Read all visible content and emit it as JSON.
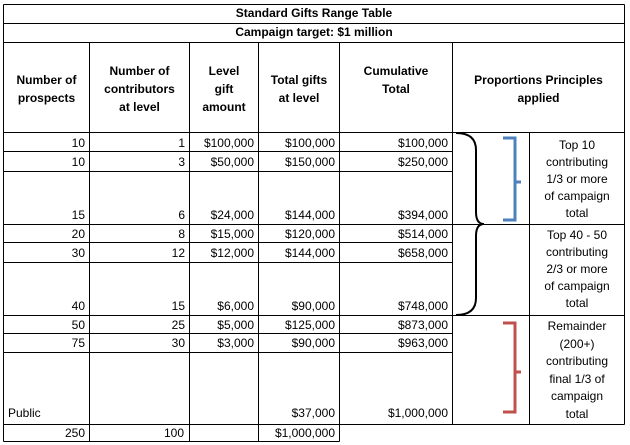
{
  "title": "Standard Gifts Range Table",
  "subtitle": "Campaign target:  $1 million",
  "headers": {
    "prospects": [
      "Number of",
      "prospects"
    ],
    "contributors": [
      "Number of",
      "contributors",
      "at level"
    ],
    "level_gift": [
      "Level",
      "gift",
      "amount"
    ],
    "total_gifts": [
      "Total gifts",
      "at level"
    ],
    "cumulative": [
      "Cumulative",
      "Total"
    ],
    "principles": [
      "Proportions Principles",
      "applied"
    ]
  },
  "rows": [
    {
      "prospects": "10",
      "contributors": "1",
      "level": "$100,000",
      "total": "$100,000",
      "cumulative": "$100,000"
    },
    {
      "prospects": "10",
      "contributors": "3",
      "level": "$50,000",
      "total": "$150,000",
      "cumulative": "$250,000"
    },
    {
      "prospects": "15",
      "contributors": "6",
      "level": "$24,000",
      "total": "$144,000",
      "cumulative": "$394,000"
    },
    {
      "prospects": "20",
      "contributors": "8",
      "level": "$15,000",
      "total": "$120,000",
      "cumulative": "$514,000"
    },
    {
      "prospects": "30",
      "contributors": "12",
      "level": "$12,000",
      "total": "$144,000",
      "cumulative": "$658,000"
    },
    {
      "prospects": "40",
      "contributors": "15",
      "level": "$6,000",
      "total": "$90,000",
      "cumulative": "$748,000"
    },
    {
      "prospects": "50",
      "contributors": "25",
      "level": "$5,000",
      "total": "$125,000",
      "cumulative": "$873,000"
    },
    {
      "prospects": "75",
      "contributors": "30",
      "level": "$3,000",
      "total": "$90,000",
      "cumulative": "$963,000"
    },
    {
      "prospects": "Public",
      "contributors": "",
      "level": "",
      "total": "$37,000",
      "cumulative": "$1,000,000"
    }
  ],
  "totals": {
    "prospects": "250",
    "contributors": "100",
    "total": "$1,000,000"
  },
  "principles": [
    [
      "Top 10",
      "contributing",
      "1/3 or more",
      "of campaign",
      "total"
    ],
    [
      "Top 40 - 50",
      "contributing",
      "2/3 or more",
      "of campaign",
      "total"
    ],
    [
      "Remainder",
      "(200+)",
      "contributing",
      "final 1/3 of",
      "campaign",
      "total"
    ]
  ],
  "bracket_colors": {
    "black": "#000000",
    "blue": "#4f81bd",
    "red": "#c0504d"
  }
}
